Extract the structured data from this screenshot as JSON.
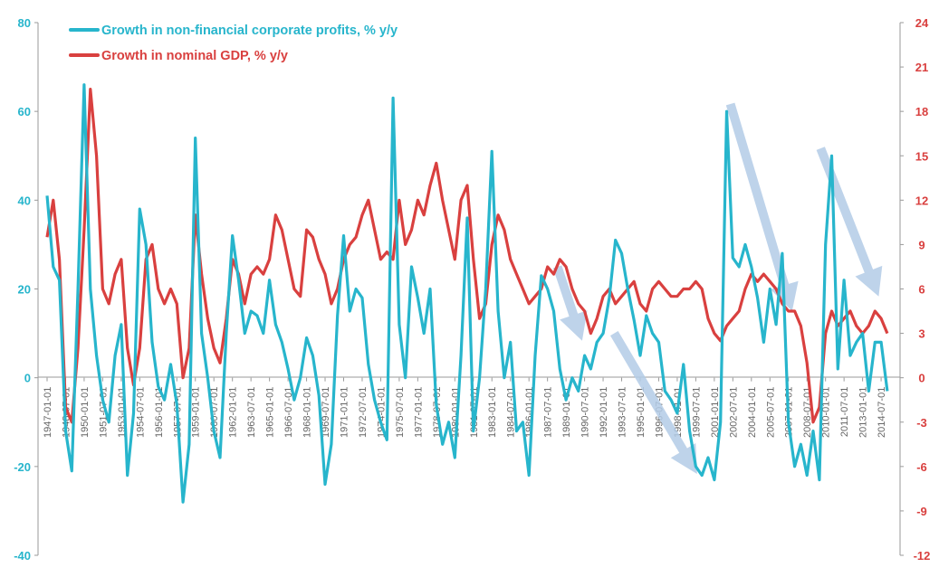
{
  "chart_data": {
    "type": "line",
    "title": "",
    "xlabel": "",
    "ylabel_left": "",
    "ylabel_right": "",
    "x_range": [
      "1947-01",
      "2015-01"
    ],
    "y_left_range": [
      -40,
      80
    ],
    "y_right_range": [
      -12,
      24
    ],
    "y_left_ticks": [
      "-40",
      "-20",
      "0",
      "20",
      "40",
      "60",
      "80"
    ],
    "y_right_ticks": [
      "-12",
      "-9",
      "-6",
      "-3",
      "0",
      "3",
      "6",
      "9",
      "12",
      "15",
      "18",
      "21",
      "24"
    ],
    "x_tick_labels": [
      "1947-01-01",
      "1948-07-01",
      "1950-01-01",
      "1951-07-01",
      "1953-01-01",
      "1954-07-01",
      "1956-01-01",
      "1957-07-01",
      "1959-01-01",
      "1960-07-01",
      "1962-01-01",
      "1963-07-01",
      "1965-01-01",
      "1966-07-01",
      "1968-01-01",
      "1969-07-01",
      "1971-01-01",
      "1972-07-01",
      "1974-01-01",
      "1975-07-01",
      "1977-01-01",
      "1978-07-01",
      "1980-01-01",
      "1981-07-01",
      "1983-01-01",
      "1984-07-01",
      "1986-01-01",
      "1987-07-01",
      "1989-01-01",
      "1990-07-01",
      "1992-01-01",
      "1993-07-01",
      "1995-01-01",
      "1996-07-01",
      "1998-01-01",
      "1999-07-01",
      "2001-01-01",
      "2002-07-01",
      "2004-01-01",
      "2005-07-01",
      "2007-01-01",
      "2008-07-01",
      "2010-01-01",
      "2011-07-01",
      "2013-01-01",
      "2014-07-01"
    ],
    "gridlines": false,
    "legend_position": "top-left",
    "series": [
      {
        "name": "Growth in non-financial corporate profits, % y/y",
        "axis": "left",
        "color": "#27b5cc",
        "points": [
          [
            1947.0,
            41
          ],
          [
            1947.5,
            25
          ],
          [
            1948.0,
            22
          ],
          [
            1948.5,
            -12
          ],
          [
            1949.0,
            -21
          ],
          [
            1949.5,
            20
          ],
          [
            1950.0,
            66
          ],
          [
            1950.5,
            20
          ],
          [
            1951.0,
            5
          ],
          [
            1951.5,
            -5
          ],
          [
            1952.0,
            -10
          ],
          [
            1952.5,
            5
          ],
          [
            1953.0,
            12
          ],
          [
            1953.5,
            -22
          ],
          [
            1954.0,
            -8
          ],
          [
            1954.5,
            38
          ],
          [
            1955.0,
            30
          ],
          [
            1955.5,
            8
          ],
          [
            1956.0,
            -2
          ],
          [
            1956.5,
            -5
          ],
          [
            1957.0,
            3
          ],
          [
            1957.5,
            -6
          ],
          [
            1958.0,
            -28
          ],
          [
            1958.5,
            -15
          ],
          [
            1959.0,
            54
          ],
          [
            1959.5,
            10
          ],
          [
            1960.0,
            0
          ],
          [
            1960.5,
            -12
          ],
          [
            1961.0,
            -18
          ],
          [
            1961.5,
            10
          ],
          [
            1962.0,
            32
          ],
          [
            1962.5,
            22
          ],
          [
            1963.0,
            10
          ],
          [
            1963.5,
            15
          ],
          [
            1964.0,
            14
          ],
          [
            1964.5,
            10
          ],
          [
            1965.0,
            22
          ],
          [
            1965.5,
            12
          ],
          [
            1966.0,
            8
          ],
          [
            1966.5,
            2
          ],
          [
            1967.0,
            -5
          ],
          [
            1967.5,
            0
          ],
          [
            1968.0,
            9
          ],
          [
            1968.5,
            5
          ],
          [
            1969.0,
            -4
          ],
          [
            1969.5,
            -24
          ],
          [
            1970.0,
            -15
          ],
          [
            1970.5,
            14
          ],
          [
            1971.0,
            32
          ],
          [
            1971.5,
            15
          ],
          [
            1972.0,
            20
          ],
          [
            1972.5,
            18
          ],
          [
            1973.0,
            3
          ],
          [
            1973.5,
            -5
          ],
          [
            1974.0,
            -10
          ],
          [
            1974.5,
            -14
          ],
          [
            1975.0,
            63
          ],
          [
            1975.5,
            12
          ],
          [
            1976.0,
            0
          ],
          [
            1976.5,
            25
          ],
          [
            1977.0,
            18
          ],
          [
            1977.5,
            10
          ],
          [
            1978.0,
            20
          ],
          [
            1978.5,
            -6
          ],
          [
            1979.0,
            -15
          ],
          [
            1979.5,
            -10
          ],
          [
            1980.0,
            -18
          ],
          [
            1980.5,
            5
          ],
          [
            1981.0,
            36
          ],
          [
            1981.5,
            -12
          ],
          [
            1982.0,
            0
          ],
          [
            1982.5,
            20
          ],
          [
            1983.0,
            51
          ],
          [
            1983.5,
            15
          ],
          [
            1984.0,
            0
          ],
          [
            1984.5,
            8
          ],
          [
            1985.0,
            -12
          ],
          [
            1985.5,
            -10
          ],
          [
            1986.0,
            -22
          ],
          [
            1986.5,
            5
          ],
          [
            1987.0,
            23
          ],
          [
            1987.5,
            20
          ],
          [
            1988.0,
            15
          ],
          [
            1988.5,
            2
          ],
          [
            1989.0,
            -5
          ],
          [
            1989.5,
            0
          ],
          [
            1990.0,
            -3
          ],
          [
            1990.5,
            5
          ],
          [
            1991.0,
            2
          ],
          [
            1991.5,
            8
          ],
          [
            1992.0,
            10
          ],
          [
            1992.5,
            18
          ],
          [
            1993.0,
            31
          ],
          [
            1993.5,
            28
          ],
          [
            1994.0,
            20
          ],
          [
            1994.5,
            13
          ],
          [
            1995.0,
            5
          ],
          [
            1995.5,
            14
          ],
          [
            1996.0,
            10
          ],
          [
            1996.5,
            8
          ],
          [
            1997.0,
            -3
          ],
          [
            1997.5,
            -5
          ],
          [
            1998.0,
            -8
          ],
          [
            1998.5,
            3
          ],
          [
            1999.0,
            -12
          ],
          [
            1999.5,
            -20
          ],
          [
            2000.0,
            -22
          ],
          [
            2000.5,
            -18
          ],
          [
            2001.0,
            -23
          ],
          [
            2001.5,
            -10
          ],
          [
            2002.0,
            60
          ],
          [
            2002.5,
            27
          ],
          [
            2003.0,
            25
          ],
          [
            2003.5,
            30
          ],
          [
            2004.0,
            25
          ],
          [
            2004.5,
            18
          ],
          [
            2005.0,
            8
          ],
          [
            2005.5,
            20
          ],
          [
            2006.0,
            12
          ],
          [
            2006.5,
            28
          ],
          [
            2007.0,
            -10
          ],
          [
            2007.5,
            -20
          ],
          [
            2008.0,
            -15
          ],
          [
            2008.5,
            -22
          ],
          [
            2009.0,
            -12
          ],
          [
            2009.5,
            -23
          ],
          [
            2010.0,
            30
          ],
          [
            2010.5,
            50
          ],
          [
            2011.0,
            2
          ],
          [
            2011.5,
            22
          ],
          [
            2012.0,
            5
          ],
          [
            2012.5,
            8
          ],
          [
            2013.0,
            10
          ],
          [
            2013.5,
            -3
          ],
          [
            2014.0,
            8
          ],
          [
            2014.5,
            8
          ],
          [
            2015.0,
            -3
          ]
        ]
      },
      {
        "name": "Growth in nominal GDP, % y/y",
        "axis": "right",
        "color": "#d9403f",
        "points": [
          [
            1947.0,
            9.5
          ],
          [
            1947.5,
            12
          ],
          [
            1948.0,
            8
          ],
          [
            1948.5,
            -2
          ],
          [
            1949.0,
            -3
          ],
          [
            1949.5,
            2
          ],
          [
            1950.0,
            10
          ],
          [
            1950.5,
            19.5
          ],
          [
            1951.0,
            15
          ],
          [
            1951.5,
            6
          ],
          [
            1952.0,
            5
          ],
          [
            1952.5,
            7
          ],
          [
            1953.0,
            8
          ],
          [
            1953.5,
            2
          ],
          [
            1954.0,
            -0.5
          ],
          [
            1954.5,
            2
          ],
          [
            1955.0,
            8
          ],
          [
            1955.5,
            9
          ],
          [
            1956.0,
            6
          ],
          [
            1956.5,
            5
          ],
          [
            1957.0,
            6
          ],
          [
            1957.5,
            5
          ],
          [
            1958.0,
            0
          ],
          [
            1958.5,
            2
          ],
          [
            1959.0,
            11
          ],
          [
            1959.5,
            7
          ],
          [
            1960.0,
            4
          ],
          [
            1960.5,
            2
          ],
          [
            1961.0,
            1
          ],
          [
            1961.5,
            4
          ],
          [
            1962.0,
            8
          ],
          [
            1962.5,
            7
          ],
          [
            1963.0,
            5
          ],
          [
            1963.5,
            7
          ],
          [
            1964.0,
            7.5
          ],
          [
            1964.5,
            7
          ],
          [
            1965.0,
            8
          ],
          [
            1965.5,
            11
          ],
          [
            1966.0,
            10
          ],
          [
            1966.5,
            8
          ],
          [
            1967.0,
            6
          ],
          [
            1967.5,
            5.5
          ],
          [
            1968.0,
            10
          ],
          [
            1968.5,
            9.5
          ],
          [
            1969.0,
            8
          ],
          [
            1969.5,
            7
          ],
          [
            1970.0,
            5
          ],
          [
            1970.5,
            6
          ],
          [
            1971.0,
            8
          ],
          [
            1971.5,
            9
          ],
          [
            1972.0,
            9.5
          ],
          [
            1972.5,
            11
          ],
          [
            1973.0,
            12
          ],
          [
            1973.5,
            10
          ],
          [
            1974.0,
            8
          ],
          [
            1974.5,
            8.5
          ],
          [
            1975.0,
            8
          ],
          [
            1975.5,
            12
          ],
          [
            1976.0,
            9
          ],
          [
            1976.5,
            10
          ],
          [
            1977.0,
            12
          ],
          [
            1977.5,
            11
          ],
          [
            1978.0,
            13
          ],
          [
            1978.5,
            14.5
          ],
          [
            1979.0,
            12
          ],
          [
            1979.5,
            10
          ],
          [
            1980.0,
            8
          ],
          [
            1980.5,
            12
          ],
          [
            1981.0,
            13
          ],
          [
            1981.5,
            8
          ],
          [
            1982.0,
            4
          ],
          [
            1982.5,
            5
          ],
          [
            1983.0,
            9
          ],
          [
            1983.5,
            11
          ],
          [
            1984.0,
            10
          ],
          [
            1984.5,
            8
          ],
          [
            1985.0,
            7
          ],
          [
            1985.5,
            6
          ],
          [
            1986.0,
            5
          ],
          [
            1986.5,
            5.5
          ],
          [
            1987.0,
            6
          ],
          [
            1987.5,
            7.5
          ],
          [
            1988.0,
            7
          ],
          [
            1988.5,
            8
          ],
          [
            1989.0,
            7.5
          ],
          [
            1989.5,
            6
          ],
          [
            1990.0,
            5
          ],
          [
            1990.5,
            4.5
          ],
          [
            1991.0,
            3
          ],
          [
            1991.5,
            4
          ],
          [
            1992.0,
            5.5
          ],
          [
            1992.5,
            6
          ],
          [
            1993.0,
            5
          ],
          [
            1993.5,
            5.5
          ],
          [
            1994.0,
            6
          ],
          [
            1994.5,
            6.5
          ],
          [
            1995.0,
            5
          ],
          [
            1995.5,
            4.5
          ],
          [
            1996.0,
            6
          ],
          [
            1996.5,
            6.5
          ],
          [
            1997.0,
            6
          ],
          [
            1997.5,
            5.5
          ],
          [
            1998.0,
            5.5
          ],
          [
            1998.5,
            6
          ],
          [
            1999.0,
            6
          ],
          [
            1999.5,
            6.5
          ],
          [
            2000.0,
            6
          ],
          [
            2000.5,
            4
          ],
          [
            2001.0,
            3
          ],
          [
            2001.5,
            2.5
          ],
          [
            2002.0,
            3.5
          ],
          [
            2002.5,
            4
          ],
          [
            2003.0,
            4.5
          ],
          [
            2003.5,
            6
          ],
          [
            2004.0,
            7
          ],
          [
            2004.5,
            6.5
          ],
          [
            2005.0,
            7
          ],
          [
            2005.5,
            6.5
          ],
          [
            2006.0,
            6
          ],
          [
            2006.5,
            5
          ],
          [
            2007.0,
            4.5
          ],
          [
            2007.5,
            4.5
          ],
          [
            2008.0,
            3.5
          ],
          [
            2008.5,
            1
          ],
          [
            2009.0,
            -3
          ],
          [
            2009.5,
            -2
          ],
          [
            2010.0,
            3
          ],
          [
            2010.5,
            4.5
          ],
          [
            2011.0,
            3.5
          ],
          [
            2011.5,
            4
          ],
          [
            2012.0,
            4.5
          ],
          [
            2012.5,
            3.5
          ],
          [
            2013.0,
            3
          ],
          [
            2013.5,
            3.5
          ],
          [
            2014.0,
            4.5
          ],
          [
            2014.5,
            4
          ],
          [
            2015.0,
            3
          ]
        ]
      }
    ],
    "annotations": [
      {
        "type": "arrow",
        "color": "#b3cbe6",
        "from": [
          1988.3,
          7.5
        ],
        "to": [
          1990.3,
          2.5
        ]
      },
      {
        "type": "arrow",
        "color": "#b3cbe6",
        "from": [
          1992.9,
          3
        ],
        "to": [
          1999.6,
          -6.5
        ]
      },
      {
        "type": "arrow",
        "color": "#b3cbe6",
        "from": [
          2002.3,
          18.5
        ],
        "to": [
          2007.3,
          4.5
        ]
      },
      {
        "type": "arrow",
        "color": "#b3cbe6",
        "from": [
          2009.6,
          15.5
        ],
        "to": [
          2014.3,
          5.5
        ]
      }
    ]
  }
}
